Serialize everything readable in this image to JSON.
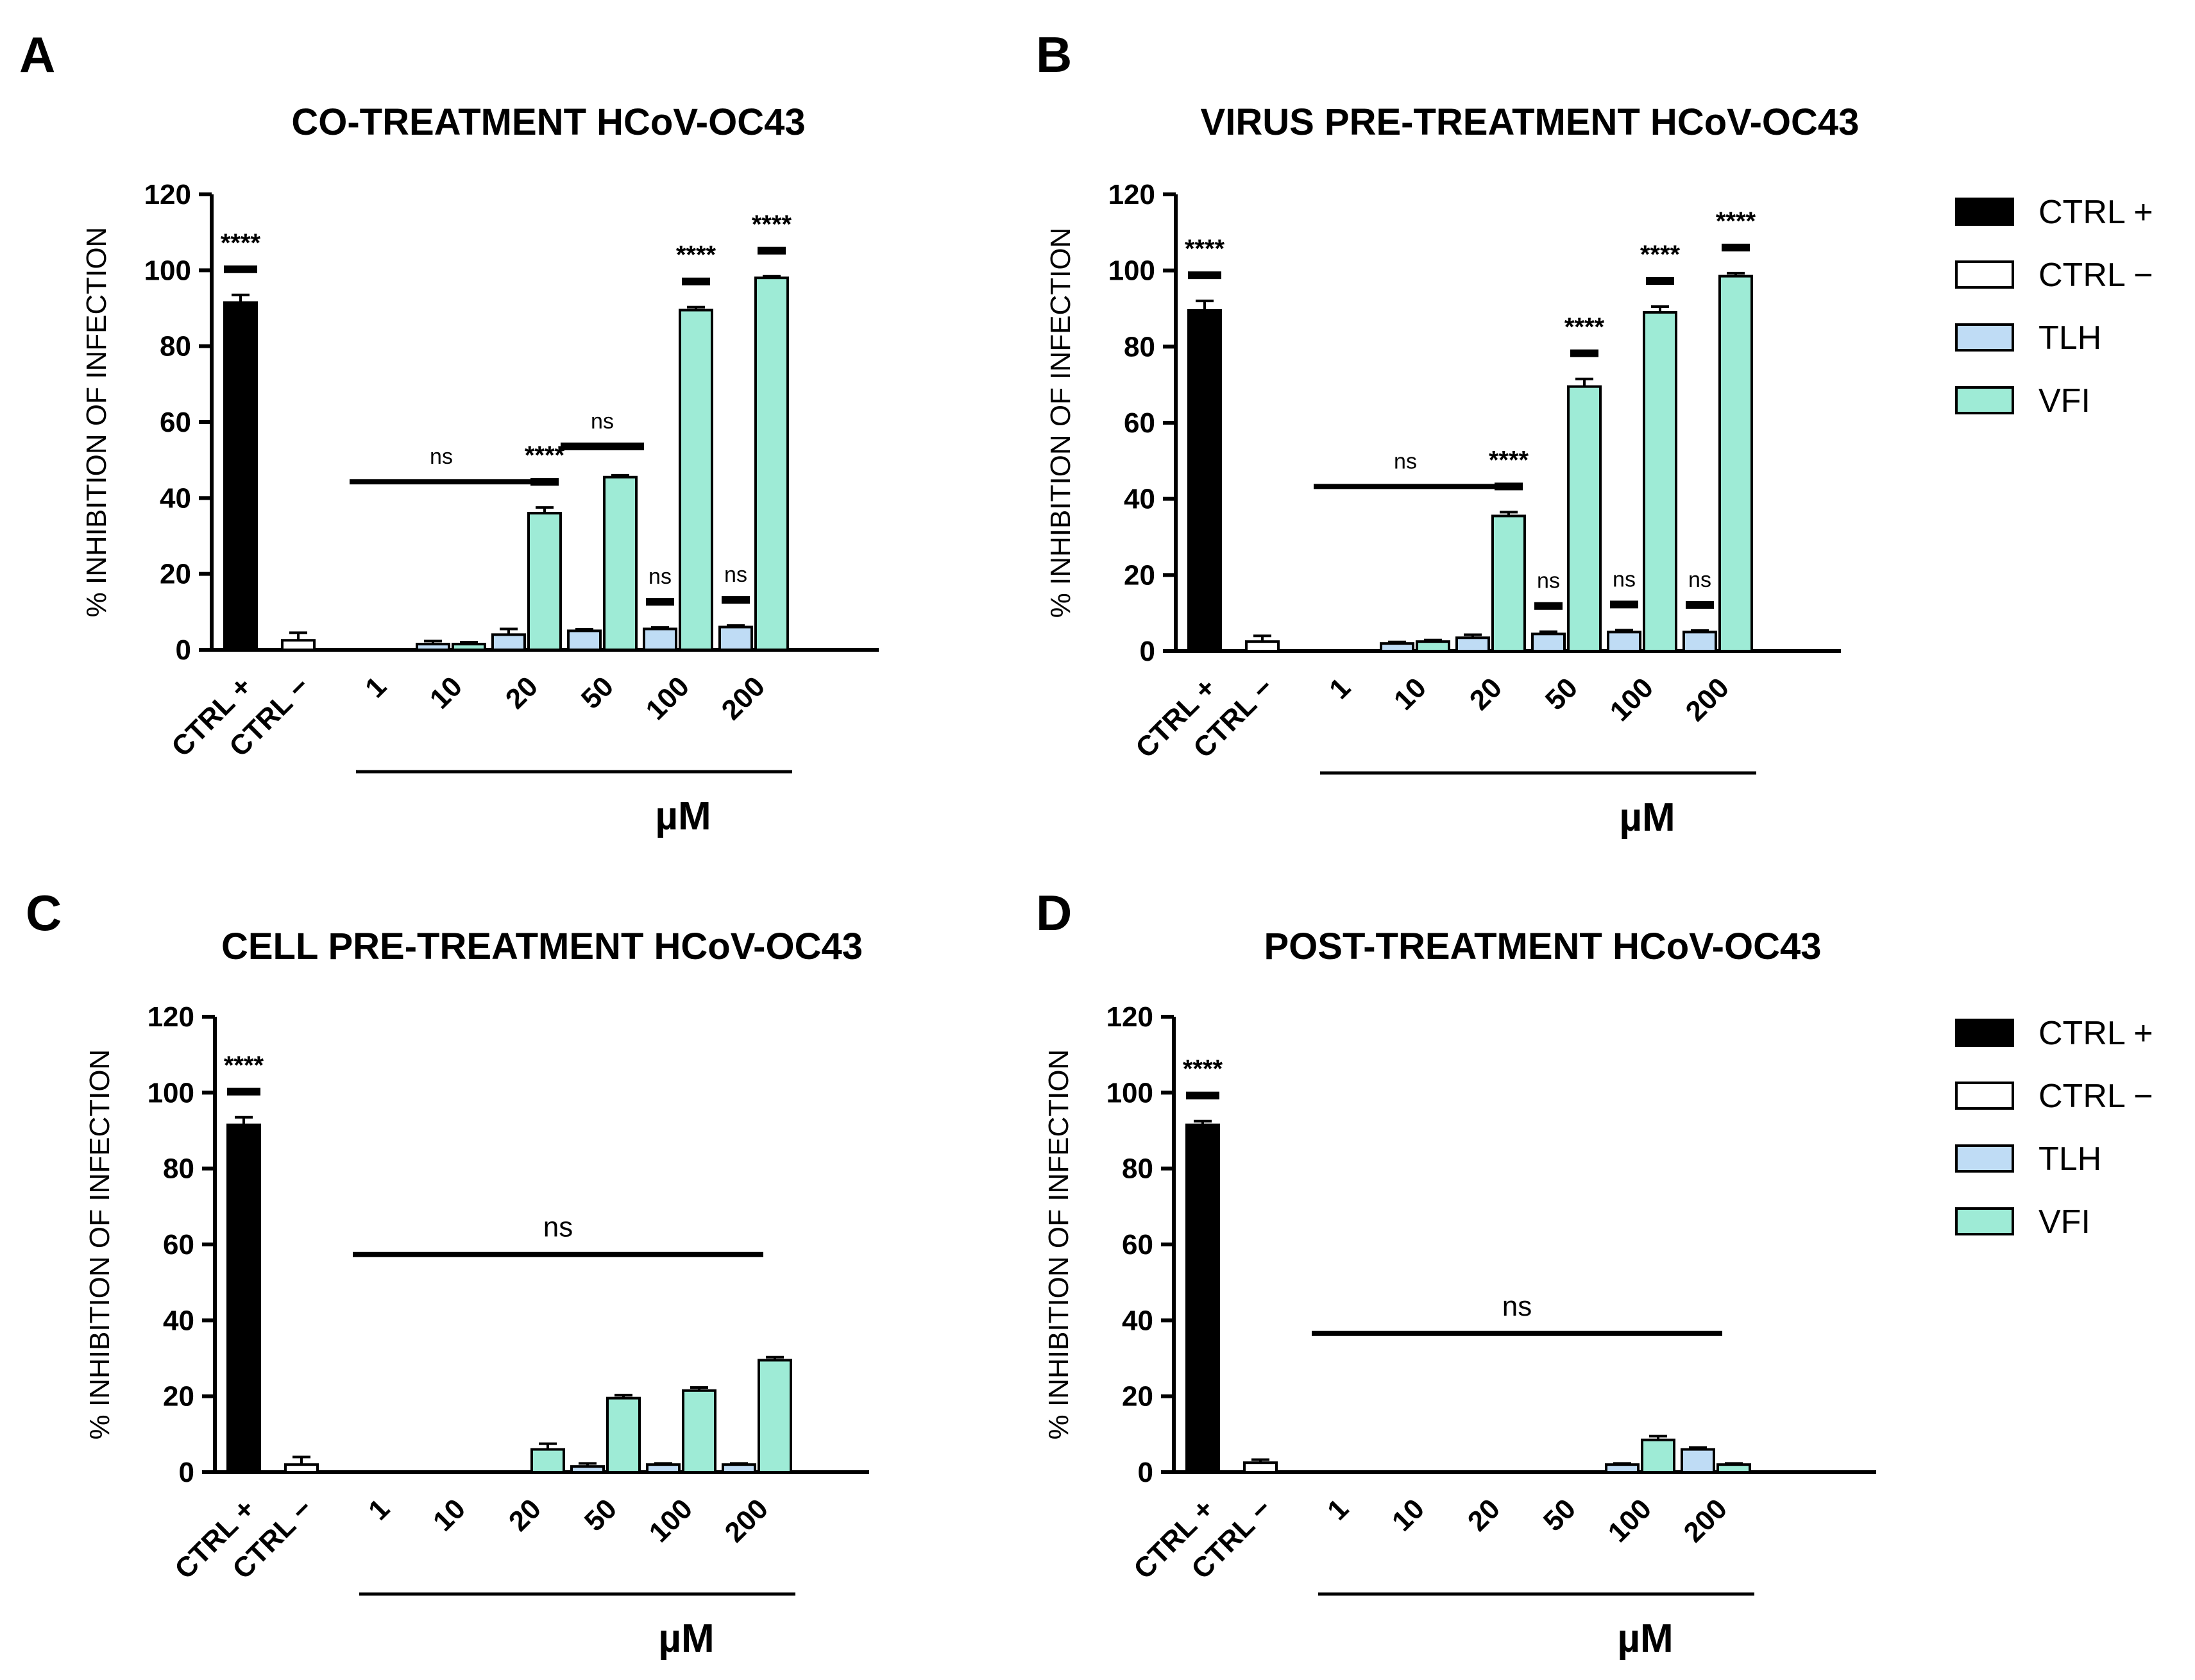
{
  "colors": {
    "ctrl_pos": "#000000",
    "ctrl_neg": "#ffffff",
    "tlh": "#bfdcf5",
    "vfi": "#9eebd6"
  },
  "legend": {
    "items": [
      {
        "label": "CTRL +",
        "color": "#000000"
      },
      {
        "label": "CTRL −",
        "color": "#ffffff"
      },
      {
        "label": "TLH",
        "color": "#bfdcf5"
      },
      {
        "label": "VFI",
        "color": "#9eebd6"
      }
    ]
  },
  "chart_data": [
    {
      "panel": "A",
      "type": "bar",
      "title": "CO-TREATMENT HCoV-OC43",
      "ylabel": "% INHIBITION OF INFECTION",
      "xlabel": "µM",
      "ylim": [
        0,
        120
      ],
      "yticks": [
        0,
        20,
        40,
        60,
        80,
        100,
        120
      ],
      "controls": [
        {
          "label": "CTRL +",
          "value": 91.5,
          "err": 2,
          "stars": "****"
        },
        {
          "label": "CTRL −",
          "value": 2.5,
          "err": 2
        }
      ],
      "categories": [
        "1",
        "10",
        "20",
        "50",
        "100",
        "200"
      ],
      "series": [
        {
          "name": "TLH",
          "values": [
            0,
            1.5,
            4,
            5,
            5.5,
            6
          ],
          "err": [
            0,
            0.8,
            1.5,
            0.4,
            0.4,
            0.4
          ]
        },
        {
          "name": "VFI",
          "values": [
            0,
            1.5,
            36,
            45.5,
            89.5,
            98
          ],
          "err": [
            0,
            0.5,
            1.5,
            0.5,
            0.8,
            0.4
          ]
        }
      ],
      "annotations": [
        {
          "text": "ns",
          "groups": [
            0,
            2
          ]
        },
        {
          "text": "****",
          "groups": [
            2,
            2
          ]
        },
        {
          "text": "ns",
          "groups": [
            3,
            3
          ]
        },
        {
          "text": "ns",
          "groups": [
            4,
            4
          ]
        },
        {
          "text": "****",
          "groups": [
            4,
            4
          ]
        },
        {
          "text": "ns",
          "groups": [
            5,
            5
          ]
        },
        {
          "text": "****",
          "groups": [
            5,
            5
          ]
        }
      ]
    },
    {
      "panel": "B",
      "type": "bar",
      "title": "VIRUS PRE-TREATMENT HCoV-OC43",
      "ylabel": "% INHIBITION OF INFECTION",
      "xlabel": "µM",
      "ylim": [
        0,
        120
      ],
      "yticks": [
        0,
        20,
        40,
        60,
        80,
        100,
        120
      ],
      "controls": [
        {
          "label": "CTRL +",
          "value": 89.5,
          "err": 2.5,
          "stars": "****"
        },
        {
          "label": "CTRL −",
          "value": 2.5,
          "err": 1.5
        }
      ],
      "categories": [
        "1",
        "10",
        "20",
        "50",
        "100",
        "200"
      ],
      "series": [
        {
          "name": "TLH",
          "values": [
            0,
            2,
            3.5,
            4.5,
            5,
            5
          ],
          "err": [
            0,
            0.4,
            0.8,
            0.6,
            0.5,
            0.4
          ]
        },
        {
          "name": "VFI",
          "values": [
            0,
            2.5,
            35.5,
            69.5,
            89,
            98.5
          ],
          "err": [
            0,
            0.4,
            1,
            2,
            1.5,
            0.8
          ]
        }
      ],
      "annotations": [
        {
          "text": "ns",
          "groups": [
            0,
            2
          ]
        },
        {
          "text": "****",
          "groups": [
            2,
            2
          ]
        },
        {
          "text": "ns",
          "groups": [
            3,
            3
          ]
        },
        {
          "text": "****",
          "groups": [
            3,
            3
          ]
        },
        {
          "text": "ns",
          "groups": [
            4,
            4
          ]
        },
        {
          "text": "****",
          "groups": [
            4,
            4
          ]
        },
        {
          "text": "ns",
          "groups": [
            5,
            5
          ]
        },
        {
          "text": "****",
          "groups": [
            5,
            5
          ]
        }
      ]
    },
    {
      "panel": "C",
      "type": "bar",
      "title": "CELL PRE-TREATMENT HCoV-OC43",
      "ylabel": "% INHIBITION OF INFECTION",
      "xlabel": "µM",
      "ylim": [
        0,
        120
      ],
      "yticks": [
        0,
        20,
        40,
        60,
        80,
        100,
        120
      ],
      "controls": [
        {
          "label": "CTRL +",
          "value": 91.5,
          "err": 2,
          "stars": "****"
        },
        {
          "label": "CTRL −",
          "value": 2,
          "err": 2
        }
      ],
      "categories": [
        "1",
        "10",
        "20",
        "50",
        "100",
        "200"
      ],
      "series": [
        {
          "name": "TLH",
          "values": [
            0,
            0,
            0,
            1.5,
            2,
            2
          ],
          "err": [
            0,
            0,
            0,
            0.8,
            0.3,
            0.3
          ]
        },
        {
          "name": "VFI",
          "values": [
            0,
            0,
            6,
            19.5,
            21.5,
            29.5
          ],
          "err": [
            0,
            0,
            1.5,
            0.8,
            0.8,
            0.8
          ]
        }
      ],
      "annotations": [
        {
          "text": "ns",
          "groups": [
            0,
            5
          ]
        }
      ]
    },
    {
      "panel": "D",
      "type": "bar",
      "title": "POST-TREATMENT HCoV-OC43",
      "ylabel": "% INHIBITION OF INFECTION",
      "xlabel": "µM",
      "ylim": [
        0,
        120
      ],
      "yticks": [
        0,
        20,
        40,
        60,
        80,
        100,
        120
      ],
      "controls": [
        {
          "label": "CTRL +",
          "value": 91.5,
          "err": 1,
          "stars": "****"
        },
        {
          "label": "CTRL −",
          "value": 2.5,
          "err": 0.8
        }
      ],
      "categories": [
        "1",
        "10",
        "20",
        "50",
        "100",
        "200"
      ],
      "series": [
        {
          "name": "TLH",
          "values": [
            0,
            0,
            0,
            0,
            2,
            6
          ],
          "err": [
            0,
            0,
            0,
            0,
            0.3,
            0.5
          ]
        },
        {
          "name": "VFI",
          "values": [
            0,
            0,
            0,
            0,
            8.5,
            2
          ],
          "err": [
            0,
            0,
            0,
            0,
            1,
            0.3
          ]
        }
      ],
      "annotations": [
        {
          "text": "ns",
          "groups": [
            0,
            5
          ]
        }
      ]
    }
  ]
}
